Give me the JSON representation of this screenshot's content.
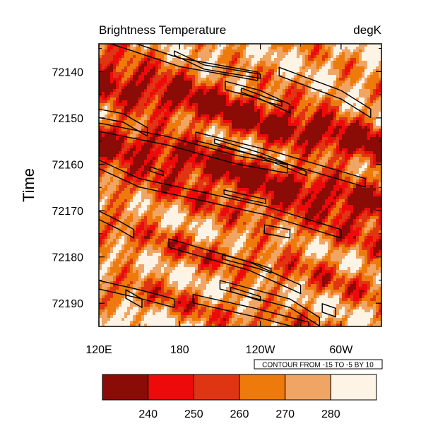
{
  "chart_data": {
    "type": "heatmap",
    "title_left": "Brightness Temperature",
    "title_right": "degK",
    "ylabel": "Time",
    "xlabel": "",
    "x_ticks": [
      {
        "label": "120E",
        "lon": 120
      },
      {
        "label": "180",
        "lon": 180
      },
      {
        "label": "120W",
        "lon": 240
      },
      {
        "label": "60W",
        "lon": 300
      }
    ],
    "xlim": [
      120,
      330
    ],
    "y_ticks": [
      72140,
      72150,
      72160,
      72170,
      72180,
      72190
    ],
    "ylim": [
      72195,
      72134
    ],
    "contour_note": "CONTOUR FROM -15 TO -5 BY 10",
    "contour_levels": [
      -15,
      -5
    ],
    "colorbar": {
      "labels": [
        "240",
        "250",
        "260",
        "270",
        "280"
      ],
      "colors": [
        "#8b0b07",
        "#ee0a0a",
        "#e03513",
        "#ee7a0c",
        "#f1a564",
        "#fdf4e6"
      ]
    },
    "contours": [
      {
        "level": -5,
        "points": [
          [
            128,
            72133
          ],
          [
            180,
            72138
          ],
          [
            238,
            72141
          ]
        ]
      },
      {
        "level": -15,
        "points": [
          [
            176,
            72136
          ],
          [
            198,
            72139
          ],
          [
            240,
            72141
          ]
        ]
      },
      {
        "level": -5,
        "points": [
          [
            254,
            72140
          ],
          [
            300,
            72145
          ],
          [
            322,
            72149
          ]
        ]
      },
      {
        "level": -5,
        "points": [
          [
            214,
            72143
          ],
          [
            240,
            72145
          ],
          [
            262,
            72148
          ]
        ]
      },
      {
        "level": -15,
        "points": [
          [
            226,
            72144
          ],
          [
            244,
            72146
          ],
          [
            256,
            72147
          ]
        ]
      },
      {
        "level": -5,
        "points": [
          [
            120,
            72149
          ],
          [
            138,
            72150
          ],
          [
            156,
            72153
          ]
        ]
      },
      {
        "level": -5,
        "points": [
          [
            120,
            72152
          ],
          [
            172,
            72155
          ],
          [
            222,
            72159
          ],
          [
            260,
            72161
          ]
        ]
      },
      {
        "level": -5,
        "points": [
          [
            192,
            72154
          ],
          [
            248,
            72158
          ],
          [
            318,
            72164
          ]
        ]
      },
      {
        "level": -15,
        "points": [
          [
            206,
            72155
          ],
          [
            240,
            72158
          ],
          [
            274,
            72162
          ]
        ]
      },
      {
        "level": -5,
        "points": [
          [
            120,
            72160
          ],
          [
            150,
            72164
          ],
          [
            198,
            72167
          ],
          [
            244,
            72170
          ],
          [
            300,
            72175
          ]
        ]
      },
      {
        "level": -15,
        "points": [
          [
            213,
            72166
          ],
          [
            228,
            72167
          ],
          [
            244,
            72168
          ]
        ]
      },
      {
        "level": -15,
        "points": [
          [
            158,
            72161
          ],
          [
            168,
            72162
          ]
        ]
      },
      {
        "level": -5,
        "points": [
          [
            120,
            72171
          ],
          [
            134,
            72173
          ],
          [
            146,
            72175
          ]
        ]
      },
      {
        "level": -5,
        "points": [
          [
            243,
            72174
          ],
          [
            262,
            72175
          ]
        ]
      },
      {
        "level": -5,
        "points": [
          [
            172,
            72177
          ],
          [
            232,
            72182
          ],
          [
            270,
            72187
          ]
        ]
      },
      {
        "level": -15,
        "points": [
          [
            212,
            72180
          ],
          [
            238,
            72182
          ],
          [
            248,
            72183
          ]
        ]
      },
      {
        "level": -5,
        "points": [
          [
            120,
            72186
          ],
          [
            150,
            72188
          ],
          [
            176,
            72190
          ]
        ]
      },
      {
        "level": -5,
        "points": [
          [
            210,
            72186
          ],
          [
            262,
            72190
          ],
          [
            284,
            72194
          ]
        ]
      },
      {
        "level": -5,
        "points": [
          [
            190,
            72189
          ],
          [
            236,
            72192
          ],
          [
            276,
            72195
          ]
        ]
      },
      {
        "level": -15,
        "points": [
          [
            218,
            72187
          ],
          [
            240,
            72189
          ]
        ]
      },
      {
        "level": -5,
        "points": [
          [
            286,
            72191
          ],
          [
            296,
            72192
          ]
        ]
      },
      {
        "level": -5,
        "points": [
          [
            140,
            72188
          ],
          [
            152,
            72190
          ]
        ]
      }
    ]
  }
}
